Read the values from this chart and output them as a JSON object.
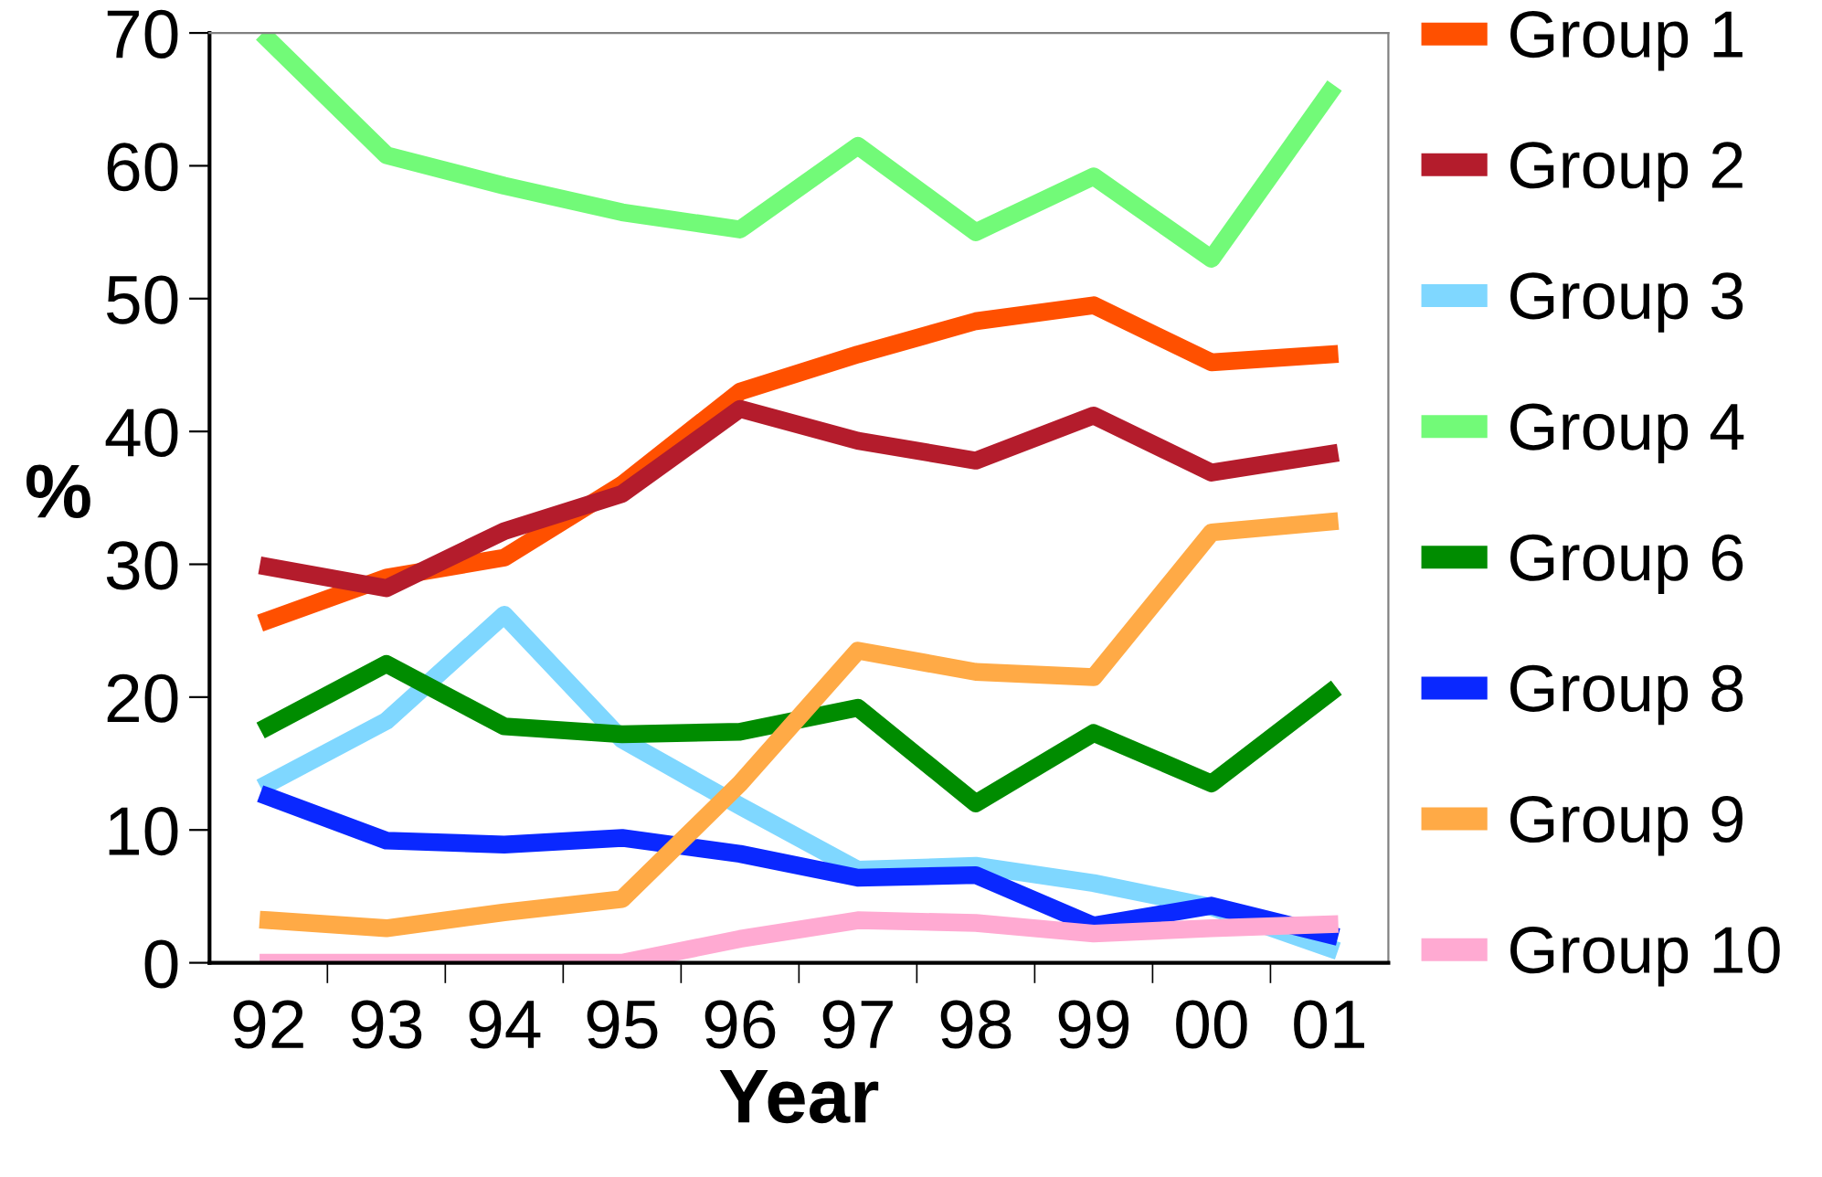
{
  "chart_data": {
    "type": "line",
    "xlabel": "Year",
    "ylabel": "%",
    "categories": [
      "92",
      "93",
      "94",
      "95",
      "96",
      "97",
      "98",
      "99",
      "00",
      "01"
    ],
    "ylim": [
      0,
      70
    ],
    "yticks": [
      0,
      10,
      20,
      30,
      40,
      50,
      60,
      70
    ],
    "grid": false,
    "legend": "right",
    "marker": "none",
    "line_style": "solid",
    "series": [
      {
        "name": "Group 1",
        "color": "#ff5000",
        "values": [
          25.8,
          29,
          30.5,
          36,
          43,
          45.8,
          48.3,
          49.5,
          45.2,
          45.8
        ]
      },
      {
        "name": "Group 2",
        "color": "#b41c2c",
        "values": [
          29.8,
          28.2,
          32.5,
          35.3,
          41.7,
          39.3,
          37.8,
          41.2,
          36.9,
          38.3
        ]
      },
      {
        "name": "Group 3",
        "color": "#7fd7ff",
        "values": [
          13.5,
          18.2,
          26.2,
          16.8,
          11.8,
          7.0,
          7.3,
          6.0,
          4.2,
          1.1
        ]
      },
      {
        "name": "Group 4",
        "color": "#72fa78",
        "values": [
          69.5,
          60.8,
          58.5,
          56.5,
          55.2,
          61.5,
          55,
          59.2,
          53,
          65.5
        ]
      },
      {
        "name": "Group 6",
        "color": "#008c00",
        "values": [
          17.8,
          22.5,
          17.8,
          17.2,
          17.4,
          19.2,
          12,
          17.3,
          13.5,
          20.3
        ]
      },
      {
        "name": "Group 8",
        "color": "#0a28ff",
        "values": [
          12.5,
          9.2,
          8.9,
          9.4,
          8.2,
          6.4,
          6.6,
          2.8,
          4.3,
          2.1
        ]
      },
      {
        "name": "Group 9",
        "color": "#ffaa46",
        "values": [
          3.2,
          2.6,
          3.8,
          4.8,
          13.5,
          23.5,
          21.9,
          21.5,
          32.4,
          33.2
        ]
      },
      {
        "name": "Group 10",
        "color": "#ffaad2",
        "values": [
          0,
          0,
          0,
          0,
          1.8,
          3.2,
          3.0,
          2.2,
          2.6,
          2.9
        ]
      }
    ]
  }
}
